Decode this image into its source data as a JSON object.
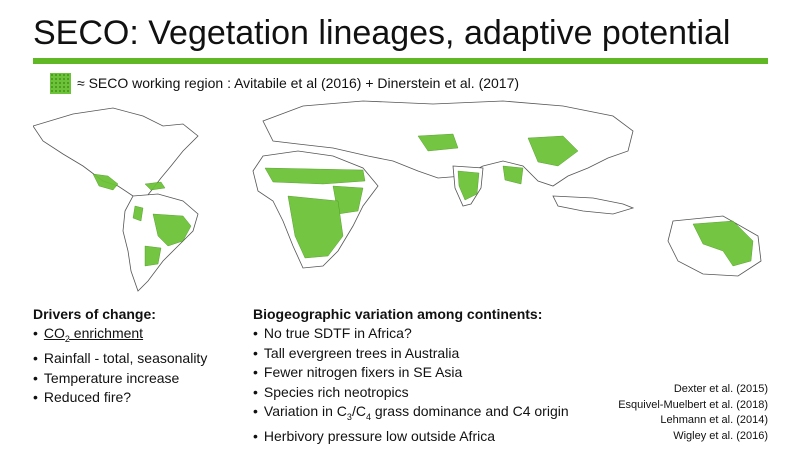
{
  "title": "SECO: Vegetation lineages, adaptive potential",
  "legend": {
    "text": "≈ SECO working region : Avitabile et al (2016) + Dinerstein et al. (2017)",
    "swatch_color": "#6cc238"
  },
  "drivers": {
    "heading": "Drivers of change:",
    "co2": {
      "prefix": "CO",
      "sub": "2",
      "suffix": " enrichment"
    },
    "items": [
      "Rainfall - total, seasonality",
      "Temperature increase",
      "Reduced fire?"
    ]
  },
  "variation": {
    "heading": "Biogeographic variation among continents:",
    "items": [
      "No true SDTF in Africa?",
      "Tall evergreen trees in Australia",
      "Fewer nitrogen fixers in SE Asia",
      "Species rich neotropics"
    ],
    "grass": {
      "prefix": "Variation in C",
      "sub1": "3",
      "mid": "/C",
      "sub2": "4",
      "suffix": " grass dominance and C4 origin"
    },
    "last": "Herbivory pressure low outside Africa"
  },
  "references": [
    "Dexter et al. (2015)",
    "Esquivel-Muelbert et al. (2018)",
    "Lehmann et al. (2014)",
    "Wigley et al. (2016)"
  ],
  "colors": {
    "accent": "#5fb824",
    "region": "#6cc238",
    "land": "#ffffff",
    "outline": "#555555"
  }
}
